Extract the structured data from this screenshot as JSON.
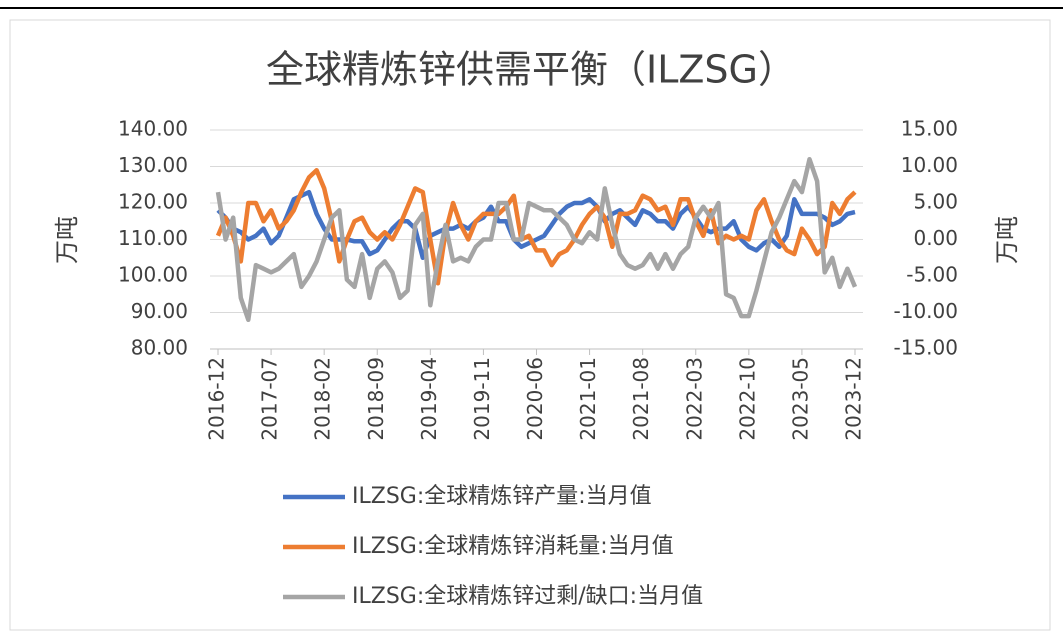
{
  "chart_data": {
    "type": "line",
    "title": "全球精炼锌供需平衡（ILZSG）",
    "ylabel": "万吨",
    "y2label": "万吨",
    "categories": [
      "2016-12",
      null,
      null,
      null,
      null,
      null,
      null,
      "2017-07",
      null,
      null,
      null,
      null,
      null,
      null,
      "2018-02",
      null,
      null,
      null,
      null,
      null,
      null,
      "2018-09",
      null,
      null,
      null,
      null,
      null,
      null,
      "2019-04",
      null,
      null,
      null,
      null,
      null,
      null,
      "2019-11",
      null,
      null,
      null,
      null,
      null,
      null,
      "2020-06",
      null,
      null,
      null,
      null,
      null,
      null,
      "2021-01",
      null,
      null,
      null,
      null,
      null,
      null,
      "2021-08",
      null,
      null,
      null,
      null,
      null,
      null,
      "2022-03",
      null,
      null,
      null,
      null,
      null,
      null,
      "2022-10",
      null,
      null,
      null,
      null,
      null,
      null,
      "2023-05",
      null,
      null,
      null,
      null,
      null,
      null,
      "2023-12"
    ],
    "series": [
      {
        "name": "ILZSG:全球精炼锌产量:当月值",
        "color": "#4472c4",
        "values": [
          118,
          116,
          113,
          112,
          110,
          111,
          113,
          109,
          111,
          116,
          121,
          122,
          123,
          117,
          113,
          110,
          110,
          110,
          109.5,
          109.5,
          106,
          107,
          110,
          113,
          115,
          115,
          113,
          105,
          111,
          112,
          113,
          113,
          114,
          113,
          115,
          116,
          119,
          115,
          115,
          110,
          108,
          109,
          110,
          111,
          114,
          117,
          119,
          120,
          120,
          121,
          119,
          115,
          117,
          118,
          116,
          114,
          118,
          117,
          115,
          115,
          113,
          117,
          119,
          116,
          113,
          112,
          113,
          113,
          115,
          110,
          108,
          107,
          109,
          110,
          108,
          111,
          121,
          117,
          117,
          117,
          116,
          114,
          115,
          117,
          117.5
        ]
      },
      {
        "name": "ILZSG:全球精炼锌消耗量:当月值",
        "color": "#ed7d31",
        "values": [
          111,
          116,
          111,
          104,
          120,
          120,
          115,
          118,
          113,
          115,
          118,
          123,
          127,
          129,
          124,
          115,
          104,
          110,
          115,
          116,
          112,
          110,
          112,
          110,
          114,
          119,
          124,
          123,
          110,
          98,
          112,
          120,
          114,
          110,
          115,
          117,
          117,
          117,
          119,
          122,
          110,
          111,
          107,
          107,
          103,
          106,
          107,
          110,
          114,
          117,
          119,
          116,
          108,
          117,
          117,
          118,
          122,
          121,
          118,
          119,
          114,
          121,
          121,
          115,
          111,
          118,
          109,
          111,
          110,
          111,
          110,
          118,
          121,
          115,
          110,
          107,
          106,
          113,
          110,
          106,
          108,
          120,
          117,
          121,
          123
        ]
      },
      {
        "name": "ILZSG:全球精炼锌过剩/缺口:当月值",
        "color": "#a5a5a5",
        "axis": "y2",
        "values": [
          6.5,
          0,
          3,
          -8,
          -11,
          -3.5,
          -4,
          -4.5,
          -4,
          -3,
          -2,
          -6.5,
          -5,
          -3,
          0,
          3,
          4,
          -5.5,
          -6.5,
          -2,
          -8,
          -4,
          -3,
          -4.5,
          -8,
          -7,
          2,
          3.5,
          -9,
          -3,
          2,
          -3,
          -2.5,
          -3,
          -1,
          0,
          0,
          5,
          5,
          0,
          0,
          5,
          4.5,
          4,
          4,
          3,
          2,
          0,
          -0.5,
          1,
          0,
          7,
          2,
          -2,
          -3.5,
          -4,
          -3.5,
          -2,
          -4,
          -2,
          -4,
          -2,
          -1,
          3,
          4.5,
          3,
          5,
          -7.5,
          -8,
          -10.5,
          -10.5,
          -7,
          -3,
          1,
          3,
          5.5,
          8,
          6.5,
          11,
          8,
          -4.5,
          -2.5,
          -6.5,
          -4,
          -6.5
        ]
      }
    ],
    "ylim": [
      80,
      140
    ],
    "yticks": [
      {
        "value": 80,
        "label": "80.00"
      },
      {
        "value": 90,
        "label": "90.00"
      },
      {
        "value": 100,
        "label": "100.00"
      },
      {
        "value": 110,
        "label": "110.00"
      },
      {
        "value": 120,
        "label": "120.00"
      },
      {
        "value": 130,
        "label": "130.00"
      },
      {
        "value": 140,
        "label": "140.00"
      }
    ],
    "y2lim": [
      -15,
      15
    ],
    "y2ticks": [
      {
        "value": -15,
        "label": "-15.00"
      },
      {
        "value": -10,
        "label": "-10.00"
      },
      {
        "value": -5,
        "label": "-5.00"
      },
      {
        "value": 0,
        "label": "0.00"
      },
      {
        "value": 5,
        "label": "5.00"
      },
      {
        "value": 10,
        "label": "10.00"
      },
      {
        "value": 15,
        "label": "15.00"
      }
    ],
    "grid": true
  }
}
